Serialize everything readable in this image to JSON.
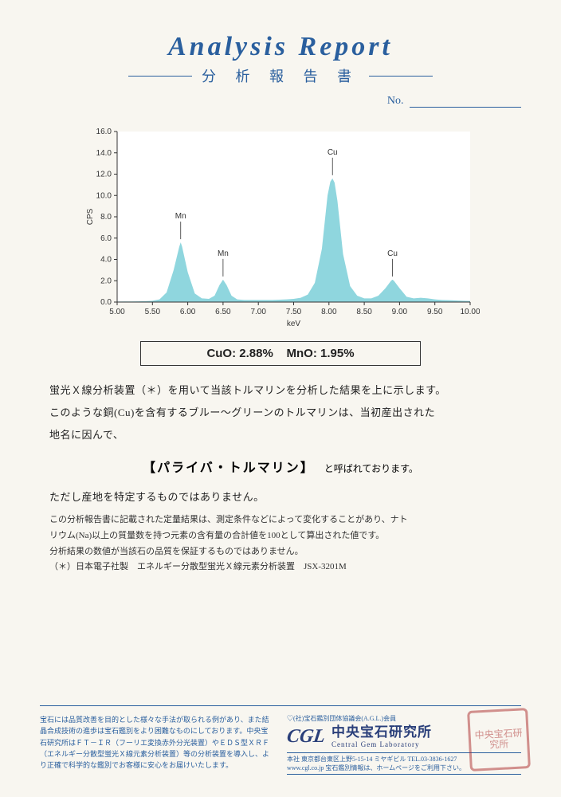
{
  "header": {
    "title_en": "Analysis  Report",
    "title_ja": "分 析 報 告 書",
    "no_label": "No."
  },
  "chart": {
    "type": "area",
    "xlabel": "keV",
    "ylabel": "CPS",
    "xlim": [
      5.0,
      10.0
    ],
    "xtick_step": 0.5,
    "ylim": [
      0.0,
      16.0
    ],
    "ytick_step": 2.0,
    "background_color": "#ffffff",
    "fill_color": "#8fd6de",
    "axis_color": "#333333",
    "tick_fontsize": 10,
    "label_fontsize": 10,
    "peak_annotations": [
      {
        "x": 5.9,
        "label": "Mn"
      },
      {
        "x": 6.5,
        "label": "Mn"
      },
      {
        "x": 8.05,
        "label": "Cu"
      },
      {
        "x": 8.9,
        "label": "Cu"
      }
    ],
    "series": [
      {
        "x": 5.0,
        "y": 0.05
      },
      {
        "x": 5.1,
        "y": 0.06
      },
      {
        "x": 5.2,
        "y": 0.06
      },
      {
        "x": 5.3,
        "y": 0.07
      },
      {
        "x": 5.4,
        "y": 0.08
      },
      {
        "x": 5.5,
        "y": 0.12
      },
      {
        "x": 5.6,
        "y": 0.25
      },
      {
        "x": 5.7,
        "y": 0.9
      },
      {
        "x": 5.8,
        "y": 3.0
      },
      {
        "x": 5.88,
        "y": 5.2
      },
      {
        "x": 5.9,
        "y": 5.6
      },
      {
        "x": 5.92,
        "y": 5.2
      },
      {
        "x": 6.0,
        "y": 2.8
      },
      {
        "x": 6.1,
        "y": 0.8
      },
      {
        "x": 6.2,
        "y": 0.35
      },
      {
        "x": 6.3,
        "y": 0.3
      },
      {
        "x": 6.38,
        "y": 0.6
      },
      {
        "x": 6.45,
        "y": 1.6
      },
      {
        "x": 6.5,
        "y": 2.1
      },
      {
        "x": 6.55,
        "y": 1.6
      },
      {
        "x": 6.62,
        "y": 0.6
      },
      {
        "x": 6.7,
        "y": 0.25
      },
      {
        "x": 6.8,
        "y": 0.2
      },
      {
        "x": 6.9,
        "y": 0.2
      },
      {
        "x": 7.0,
        "y": 0.2
      },
      {
        "x": 7.1,
        "y": 0.2
      },
      {
        "x": 7.2,
        "y": 0.2
      },
      {
        "x": 7.3,
        "y": 0.22
      },
      {
        "x": 7.4,
        "y": 0.25
      },
      {
        "x": 7.5,
        "y": 0.3
      },
      {
        "x": 7.6,
        "y": 0.4
      },
      {
        "x": 7.7,
        "y": 0.7
      },
      {
        "x": 7.8,
        "y": 1.8
      },
      {
        "x": 7.9,
        "y": 5.0
      },
      {
        "x": 7.98,
        "y": 10.0
      },
      {
        "x": 8.02,
        "y": 11.3
      },
      {
        "x": 8.05,
        "y": 11.6
      },
      {
        "x": 8.08,
        "y": 11.2
      },
      {
        "x": 8.12,
        "y": 9.5
      },
      {
        "x": 8.2,
        "y": 4.5
      },
      {
        "x": 8.3,
        "y": 1.5
      },
      {
        "x": 8.4,
        "y": 0.6
      },
      {
        "x": 8.5,
        "y": 0.35
      },
      {
        "x": 8.6,
        "y": 0.35
      },
      {
        "x": 8.7,
        "y": 0.6
      },
      {
        "x": 8.8,
        "y": 1.3
      },
      {
        "x": 8.88,
        "y": 2.0
      },
      {
        "x": 8.9,
        "y": 2.1
      },
      {
        "x": 8.92,
        "y": 2.0
      },
      {
        "x": 9.0,
        "y": 1.3
      },
      {
        "x": 9.1,
        "y": 0.5
      },
      {
        "x": 9.2,
        "y": 0.35
      },
      {
        "x": 9.3,
        "y": 0.4
      },
      {
        "x": 9.4,
        "y": 0.35
      },
      {
        "x": 9.5,
        "y": 0.25
      },
      {
        "x": 9.6,
        "y": 0.2
      },
      {
        "x": 9.7,
        "y": 0.18
      },
      {
        "x": 9.8,
        "y": 0.15
      },
      {
        "x": 9.9,
        "y": 0.12
      },
      {
        "x": 10.0,
        "y": 0.1
      }
    ]
  },
  "result_box": {
    "cuo_label": "CuO:",
    "cuo_value": "2.88%",
    "mno_label": "MnO:",
    "mno_value": "1.95%"
  },
  "body": {
    "line1": "蛍光Ｘ線分析装置（＊）を用いて当該トルマリンを分析した結果を上に示します。",
    "line2": "このような銅(Cu)を含有するブルー～グリーンのトルマリンは、当初産出された",
    "line3": "地名に因んで、",
    "name_bracket": "【パライバ・トルマリン】",
    "name_suffix": "と呼ばれております。",
    "line4": "ただし産地を特定するものではありません。"
  },
  "fine": {
    "f1": "この分析報告書に記載された定量結果は、測定条件などによって変化することがあり、ナト",
    "f2": "リウム(Na)以上の質量数を持つ元素の含有量の合計値を100として算出された値です。",
    "f3": "分析結果の数値が当該石の品質を保証するものではありません。",
    "f4": "（＊）日本電子社製　エネルギー分散型蛍光Ｘ線元素分析装置　JSX-3201M"
  },
  "footer": {
    "left": "宝石には品質改善を目的とした様々な手法が取られる例があり、また結晶合成技術の進歩は宝石鑑別をより困難なものにしております。中央宝石研究所はＦＴ－ＩＲ（フーリエ変換赤外分光装置）やＥＤＳ型ＸＲＦ（エネルギー分散型蛍光Ｘ線元素分析装置）等の分析装置を導入し、より正確で科学的な鑑別でお客様に安心をお届けいたします。",
    "assoc": "♡(社)宝石鑑別団体協議会(A.G.L.)会員",
    "logo_mark": "CGL",
    "logo_name_ja": "中央宝石研究所",
    "logo_name_en": "Central Gem Laboratory",
    "addr": "本社 東京都台東区上野5-15-14 ミヤギビル TEL.03-3836-1627",
    "web": "www.cgl.co.jp  宝石鑑別情報は、ホームページをご利用下さい。",
    "seal": "中央宝石研究所"
  }
}
